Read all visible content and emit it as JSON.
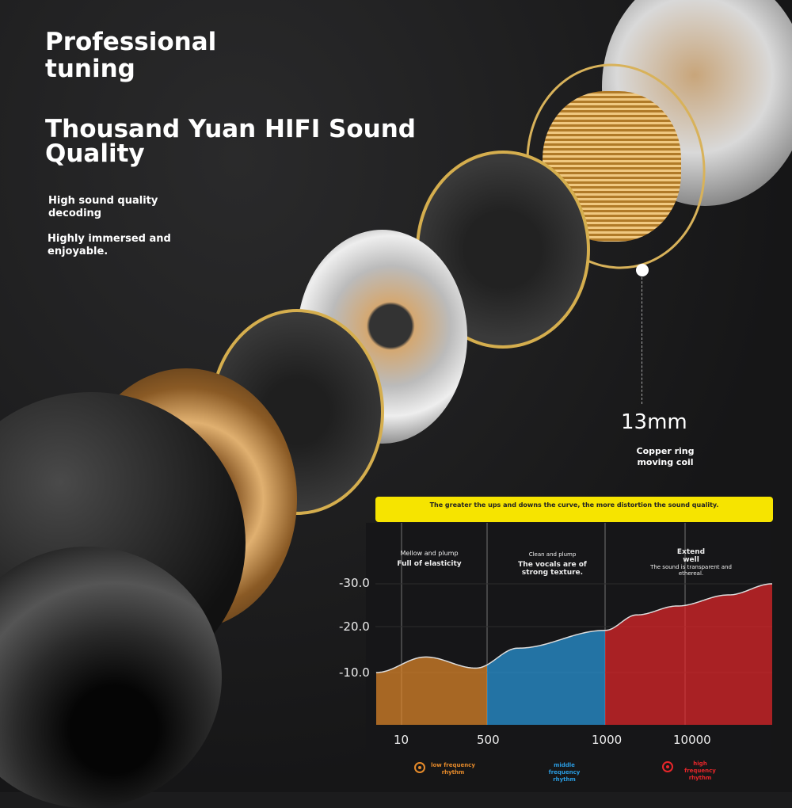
{
  "heading": {
    "line1": "Professional",
    "line2": "tuning",
    "title1": "Thousand Yuan HIFI Sound",
    "title2": "Quality"
  },
  "features": [
    {
      "line1": "High sound quality",
      "line2": "decoding"
    },
    {
      "line1": "Highly immersed and",
      "line2": "enjoyable."
    }
  ],
  "driver": {
    "size": "13mm",
    "label1": "Copper ring",
    "label2": "moving coil"
  },
  "banner": "The greater the ups and downs the curve, the more distortion the sound quality.",
  "captions": [
    {
      "title": "Mellow and plump",
      "desc": "Full of elasticity"
    },
    {
      "title": "Clean and plump",
      "desc": "The vocals are of strong texture."
    },
    {
      "title": "Extend well",
      "desc": "The sound is transparent and ethereal."
    }
  ],
  "chart_data": {
    "type": "area",
    "y_ticks": [
      "-30.0",
      "-20.0",
      "-10.0"
    ],
    "x_ticks": [
      "10",
      "500",
      "1000",
      "10000"
    ],
    "ylim": [
      -8,
      -32
    ],
    "x": [
      5,
      30,
      300,
      600,
      1000,
      2500,
      8000,
      20000,
      40000
    ],
    "y": [
      -10,
      -13.5,
      -11,
      -15.5,
      -19.5,
      -23,
      -25,
      -27.5,
      -30
    ],
    "bands": [
      {
        "name": "low frequency rhythm",
        "from": 5,
        "to": 500,
        "color": "#e58a2a"
      },
      {
        "name": "middle frequency rhythm",
        "from": 500,
        "to": 1000,
        "color": "#2a9be0"
      },
      {
        "name": "high frequency rhythm",
        "from": 1000,
        "to": 40000,
        "color": "#e8262a"
      }
    ]
  }
}
